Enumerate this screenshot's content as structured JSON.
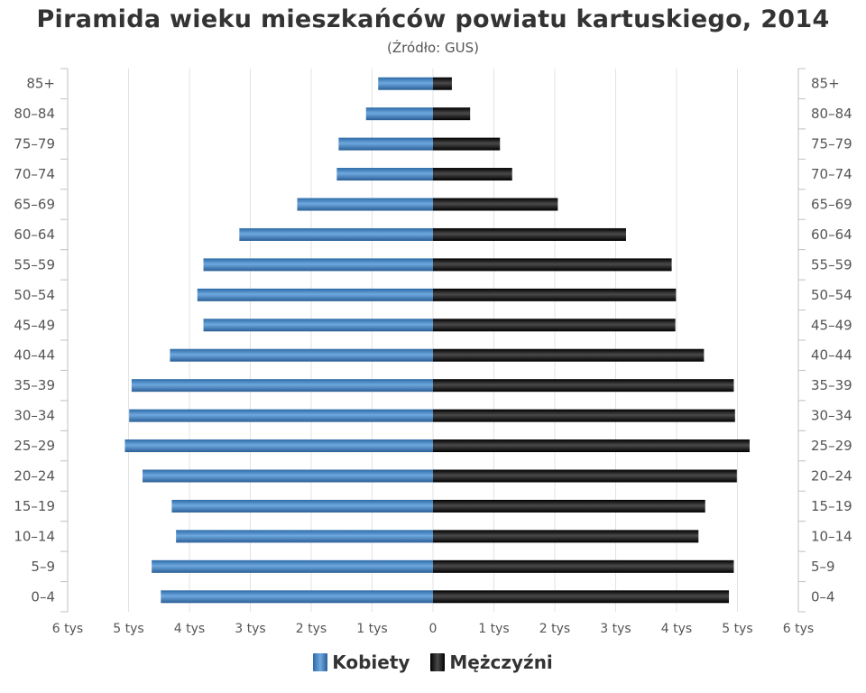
{
  "chart_data": {
    "type": "bar",
    "orientation": "horizontal",
    "title": "Piramida wieku mieszkańców powiatu kartuskiego, 2014",
    "subtitle": "(Źródło: GUS)",
    "categories": [
      "85+",
      "80-84",
      "75-79",
      "70-74",
      "65-69",
      "60-64",
      "55-59",
      "50-54",
      "45-49",
      "40-44",
      "35-39",
      "30-34",
      "25-29",
      "20-24",
      "15-19",
      "10-14",
      "5-9",
      "0-4"
    ],
    "series": [
      {
        "name": "Kobiety",
        "color": "#4a8ed0",
        "values": [
          900,
          1100,
          1550,
          1580,
          2230,
          3180,
          3770,
          3870,
          3770,
          4320,
          4950,
          4990,
          5060,
          4770,
          4290,
          4220,
          4620,
          4470
        ]
      },
      {
        "name": "Mężczyźni",
        "color": "#1a1a1a",
        "values": [
          310,
          610,
          1100,
          1300,
          2050,
          3170,
          3920,
          3990,
          3980,
          4450,
          4940,
          4960,
          5200,
          4990,
          4470,
          4360,
          4940,
          4860
        ]
      }
    ],
    "x_ticks": [
      {
        "value": -6000,
        "label": "6 tys"
      },
      {
        "value": -5000,
        "label": "5 tys"
      },
      {
        "value": -4000,
        "label": "4 tys"
      },
      {
        "value": -3000,
        "label": "3 tys"
      },
      {
        "value": -2000,
        "label": "2 tys"
      },
      {
        "value": -1000,
        "label": "1 tys"
      },
      {
        "value": 0,
        "label": "0"
      },
      {
        "value": 1000,
        "label": "1 tys"
      },
      {
        "value": 2000,
        "label": "2 tys"
      },
      {
        "value": 3000,
        "label": "3 tys"
      },
      {
        "value": 4000,
        "label": "4 tys"
      },
      {
        "value": 5000,
        "label": "5 tys"
      },
      {
        "value": 6000,
        "label": "6 tys"
      }
    ],
    "xlim": [
      -6000,
      6000
    ],
    "grid": true,
    "legend_position": "bottom"
  }
}
